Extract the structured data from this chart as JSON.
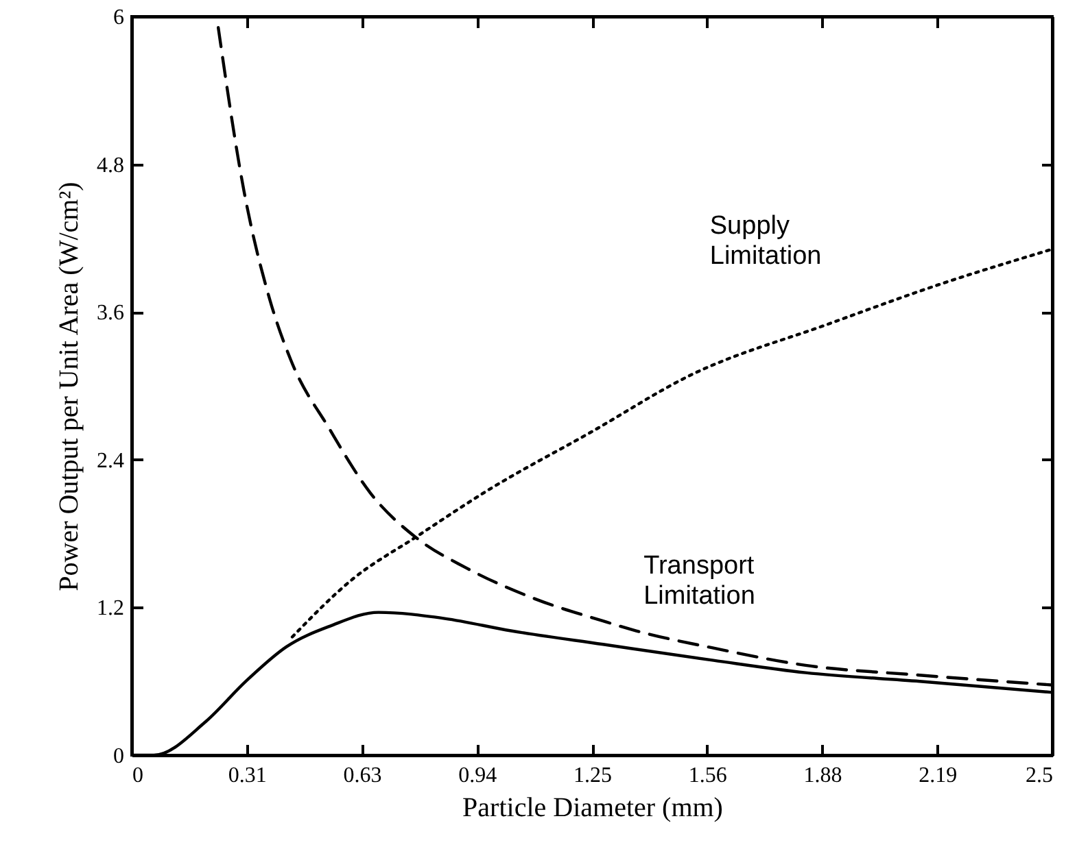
{
  "chart_data": {
    "type": "line",
    "xlabel": "Particle Diameter (mm)",
    "ylabel": "Power Output per Unit Area (W/cm²)",
    "xlim": [
      0,
      2.5
    ],
    "ylim": [
      0,
      6
    ],
    "xticks": [
      0,
      {
        "value": 0.3125,
        "label": "0.31"
      },
      {
        "value": 0.625,
        "label": "0.63"
      },
      {
        "value": 0.9375,
        "label": "0.94"
      },
      1.25,
      {
        "value": 1.5625,
        "label": "1.56"
      },
      {
        "value": 1.875,
        "label": "1.88"
      },
      {
        "value": 2.1875,
        "label": "2.19"
      },
      2.5
    ],
    "yticks": [
      0,
      1.2,
      2.4,
      3.6,
      4.8,
      6
    ],
    "grid": false,
    "series": [
      {
        "color": "#000000",
        "line_style": "solid",
        "x": [
          0,
          0.06,
          0.2,
          0.31,
          0.42,
          0.54,
          0.67,
          0.85,
          1.03,
          1.28,
          1.58,
          1.83,
          2.14,
          2.5
        ],
        "values": [
          0,
          0,
          0.27,
          0.6,
          0.88,
          1.05,
          1.16,
          1.11,
          1.01,
          0.9,
          0.77,
          0.67,
          0.6,
          0.51
        ]
      },
      {
        "color": "#000000",
        "line_style": "dashed",
        "x": [
          0.235,
          0.305,
          0.376,
          0.432,
          0.537,
          0.648,
          0.771,
          0.909,
          1.095,
          1.28,
          1.37,
          1.58,
          1.83,
          2.14,
          2.5
        ],
        "values": [
          5.91,
          4.58,
          3.69,
          3.21,
          2.65,
          2.13,
          1.77,
          1.52,
          1.27,
          1.09,
          1.01,
          0.87,
          0.73,
          0.65,
          0.57
        ]
      },
      {
        "color": "#000000",
        "line_style": "dotted",
        "x": [
          0.436,
          0.6,
          0.771,
          0.972,
          1.245,
          1.52,
          1.89,
          2.2,
          2.5
        ],
        "values": [
          0.96,
          1.43,
          1.77,
          2.16,
          2.62,
          3.09,
          3.5,
          3.83,
          4.11
        ]
      }
    ],
    "annotations": [
      "Supply Limitation",
      "Transport Limitation"
    ]
  }
}
